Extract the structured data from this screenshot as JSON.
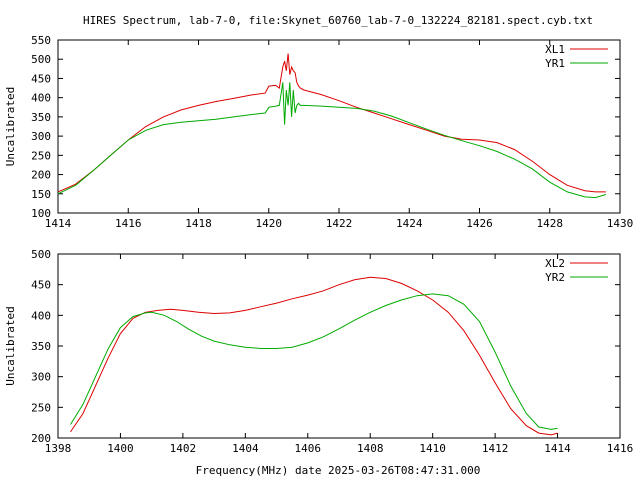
{
  "title": "HIRES Spectrum, lab-7-0, file:Skynet_60760_lab-7-0_132224_82181.spect.cyb.txt",
  "xlabel": "Frequency(MHz) date 2025-03-26T08:47:31.000",
  "colors": {
    "series1": "#dd0000",
    "series2": "#00aa00"
  },
  "chart_data": [
    {
      "type": "line",
      "ylabel": "Uncalibrated",
      "xlim": [
        1414,
        1430
      ],
      "ylim": [
        100,
        550
      ],
      "xticks": [
        1414,
        1416,
        1418,
        1420,
        1422,
        1424,
        1426,
        1428,
        1430
      ],
      "yticks": [
        100,
        150,
        200,
        250,
        300,
        350,
        400,
        450,
        500,
        550
      ],
      "legend_position": "top-right",
      "series": [
        {
          "name": "XL1",
          "x": [
            1414.0,
            1414.5,
            1415.0,
            1415.5,
            1416.0,
            1416.5,
            1417.0,
            1417.5,
            1418.0,
            1418.5,
            1419.0,
            1419.5,
            1419.9,
            1420.0,
            1420.2,
            1420.3,
            1420.4,
            1420.45,
            1420.5,
            1420.55,
            1420.6,
            1420.65,
            1420.7,
            1420.75,
            1420.8,
            1420.85,
            1420.9,
            1421.0,
            1421.5,
            1422.0,
            1422.5,
            1423.0,
            1423.5,
            1424.0,
            1424.5,
            1425.0,
            1425.5,
            1426.0,
            1426.5,
            1427.0,
            1427.5,
            1428.0,
            1428.5,
            1429.0,
            1429.3,
            1429.6
          ],
          "y": [
            155,
            175,
            210,
            250,
            290,
            325,
            350,
            368,
            380,
            390,
            398,
            407,
            412,
            430,
            432,
            425,
            480,
            495,
            470,
            515,
            460,
            480,
            470,
            465,
            440,
            430,
            425,
            420,
            408,
            392,
            375,
            360,
            345,
            330,
            315,
            300,
            292,
            290,
            283,
            265,
            235,
            200,
            172,
            158,
            155,
            155
          ]
        },
        {
          "name": "YR1",
          "x": [
            1414.0,
            1414.5,
            1415.0,
            1415.5,
            1416.0,
            1416.5,
            1417.0,
            1417.5,
            1418.0,
            1418.5,
            1419.0,
            1419.5,
            1419.9,
            1420.0,
            1420.2,
            1420.3,
            1420.4,
            1420.45,
            1420.5,
            1420.55,
            1420.6,
            1420.65,
            1420.7,
            1420.75,
            1420.8,
            1420.85,
            1420.9,
            1421.0,
            1421.5,
            1422.0,
            1422.5,
            1423.0,
            1423.5,
            1424.0,
            1424.5,
            1425.0,
            1425.5,
            1426.0,
            1426.5,
            1427.0,
            1427.5,
            1428.0,
            1428.5,
            1429.0,
            1429.3,
            1429.6
          ],
          "y": [
            150,
            172,
            210,
            250,
            290,
            315,
            330,
            336,
            340,
            344,
            350,
            356,
            360,
            375,
            378,
            380,
            440,
            330,
            420,
            380,
            440,
            350,
            420,
            360,
            380,
            385,
            380,
            380,
            378,
            375,
            372,
            365,
            352,
            335,
            318,
            302,
            288,
            275,
            260,
            240,
            215,
            180,
            155,
            142,
            140,
            148
          ]
        }
      ]
    },
    {
      "type": "line",
      "ylabel": "Uncalibrated",
      "xlim": [
        1398,
        1416
      ],
      "ylim": [
        200,
        500
      ],
      "xticks": [
        1398,
        1400,
        1402,
        1404,
        1406,
        1408,
        1410,
        1412,
        1414,
        1416
      ],
      "yticks": [
        200,
        250,
        300,
        350,
        400,
        450,
        500
      ],
      "legend_position": "top-right",
      "series": [
        {
          "name": "XL2",
          "x": [
            1398.4,
            1398.8,
            1399.2,
            1399.6,
            1400.0,
            1400.4,
            1400.8,
            1401.2,
            1401.6,
            1402.0,
            1402.5,
            1403.0,
            1403.5,
            1404.0,
            1404.5,
            1405.0,
            1405.5,
            1406.0,
            1406.5,
            1407.0,
            1407.5,
            1408.0,
            1408.5,
            1409.0,
            1409.5,
            1410.0,
            1410.5,
            1411.0,
            1411.5,
            1412.0,
            1412.5,
            1413.0,
            1413.4,
            1413.8,
            1414.0
          ],
          "y": [
            210,
            240,
            285,
            330,
            370,
            395,
            405,
            408,
            410,
            408,
            405,
            403,
            404,
            408,
            414,
            420,
            427,
            433,
            440,
            450,
            458,
            462,
            460,
            452,
            440,
            425,
            405,
            375,
            335,
            290,
            248,
            220,
            208,
            205,
            208
          ]
        },
        {
          "name": "YR2",
          "x": [
            1398.4,
            1398.8,
            1399.2,
            1399.6,
            1400.0,
            1400.4,
            1400.8,
            1401.0,
            1401.4,
            1401.8,
            1402.2,
            1402.6,
            1403.0,
            1403.5,
            1404.0,
            1404.5,
            1405.0,
            1405.5,
            1406.0,
            1406.5,
            1407.0,
            1407.5,
            1408.0,
            1408.5,
            1409.0,
            1409.5,
            1410.0,
            1410.5,
            1411.0,
            1411.5,
            1412.0,
            1412.5,
            1413.0,
            1413.4,
            1413.8,
            1414.0
          ],
          "y": [
            222,
            255,
            300,
            345,
            380,
            398,
            404,
            405,
            400,
            390,
            377,
            366,
            358,
            352,
            348,
            346,
            346,
            348,
            355,
            365,
            378,
            392,
            405,
            416,
            425,
            432,
            435,
            432,
            418,
            390,
            340,
            285,
            240,
            218,
            214,
            216
          ]
        }
      ]
    }
  ]
}
